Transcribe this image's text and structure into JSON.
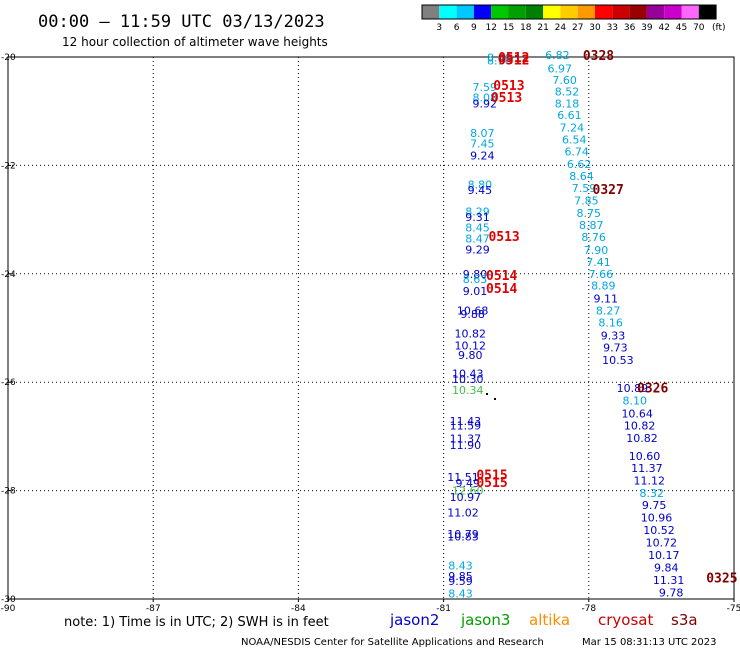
{
  "header": {
    "title": "00:00 – 11:59 UTC 03/13/2023",
    "subtitle": "12 hour collection of altimeter wave heights"
  },
  "colorbar": {
    "colors": [
      "#808080",
      "#00ffff",
      "#00c8ff",
      "#0000ff",
      "#00c800",
      "#00a000",
      "#008000",
      "#ffff00",
      "#ffcc00",
      "#ff9900",
      "#ff0000",
      "#cc0000",
      "#990000",
      "#990099",
      "#cc00cc",
      "#ff66ff",
      "#000000"
    ],
    "labels": [
      "3",
      "6",
      "9",
      "12",
      "15",
      "18",
      "21",
      "24",
      "27",
      "30",
      "33",
      "36",
      "39",
      "42",
      "45",
      "70"
    ],
    "unit": "(ft)"
  },
  "footer": {
    "note": "note:  1) Time is in UTC;  2) SWH is in feet",
    "satellites": [
      {
        "name": "jason2",
        "color": "#0000cc"
      },
      {
        "name": "jason3",
        "color": "#00a000"
      },
      {
        "name": "altika",
        "color": "#ff8c00"
      },
      {
        "name": "cryosat",
        "color": "#cc0000"
      },
      {
        "name": "s3a",
        "color": "#800000"
      }
    ],
    "credit": "NOAA/NESDIS Center for Satellite Applications and Research",
    "generated": "Mar 15 08:31:13 UTC 2023"
  },
  "chart_data": {
    "type": "scatter",
    "xlim": [
      -90,
      -75
    ],
    "ylim": [
      -30,
      -20
    ],
    "xticks": [
      "-90",
      "-87",
      "-84",
      "-81",
      "-78",
      "-75"
    ],
    "yticks": [
      "-20",
      "-22",
      "-24",
      "-26",
      "-28",
      "-30"
    ],
    "grid": true,
    "point_colors": {
      "cyan": "#00a8e0",
      "blue": "#0000cc",
      "green": "#44bb44"
    },
    "pass_colors": {
      "red": "#e00000",
      "dark": "#800000"
    },
    "points": [
      {
        "x": -79.85,
        "y": -20.01,
        "v": "8.66",
        "c": "cyan"
      },
      {
        "x": -79.85,
        "y": -20.06,
        "v": "8.96",
        "c": "cyan"
      },
      {
        "x": -78.65,
        "y": -19.96,
        "v": "6.82",
        "c": "cyan"
      },
      {
        "x": -78.6,
        "y": -20.21,
        "v": "6.97",
        "c": "cyan"
      },
      {
        "x": -78.5,
        "y": -20.42,
        "v": "7.60",
        "c": "cyan"
      },
      {
        "x": -78.45,
        "y": -20.64,
        "v": "8.52",
        "c": "cyan"
      },
      {
        "x": -78.45,
        "y": -20.86,
        "v": "8.18",
        "c": "cyan"
      },
      {
        "x": -78.4,
        "y": -21.07,
        "v": "6.61",
        "c": "cyan"
      },
      {
        "x": -78.35,
        "y": -21.3,
        "v": "7.24",
        "c": "cyan"
      },
      {
        "x": -78.3,
        "y": -21.52,
        "v": "6.54",
        "c": "cyan"
      },
      {
        "x": -78.25,
        "y": -21.74,
        "v": "6.74",
        "c": "cyan"
      },
      {
        "x": -78.2,
        "y": -21.97,
        "v": "6.62",
        "c": "cyan"
      },
      {
        "x": -78.15,
        "y": -22.2,
        "v": "8.64",
        "c": "cyan"
      },
      {
        "x": -78.1,
        "y": -22.42,
        "v": "7.59",
        "c": "cyan"
      },
      {
        "x": -78.05,
        "y": -22.65,
        "v": "7.85",
        "c": "cyan"
      },
      {
        "x": -78.0,
        "y": -22.88,
        "v": "8.75",
        "c": "cyan"
      },
      {
        "x": -77.95,
        "y": -23.1,
        "v": "8.87",
        "c": "cyan"
      },
      {
        "x": -77.9,
        "y": -23.32,
        "v": "8.76",
        "c": "cyan"
      },
      {
        "x": -77.85,
        "y": -23.56,
        "v": "7.90",
        "c": "cyan"
      },
      {
        "x": -77.8,
        "y": -23.78,
        "v": "7.41",
        "c": "cyan"
      },
      {
        "x": -77.75,
        "y": -24.0,
        "v": "7.66",
        "c": "cyan"
      },
      {
        "x": -77.7,
        "y": -24.22,
        "v": "8.89",
        "c": "cyan"
      },
      {
        "x": -77.65,
        "y": -24.46,
        "v": "9.11",
        "c": "blue"
      },
      {
        "x": -77.6,
        "y": -24.68,
        "v": "8.27",
        "c": "cyan"
      },
      {
        "x": -77.55,
        "y": -24.9,
        "v": "8.16",
        "c": "cyan"
      },
      {
        "x": -77.5,
        "y": -25.14,
        "v": "9.33",
        "c": "blue"
      },
      {
        "x": -77.45,
        "y": -25.36,
        "v": "9.73",
        "c": "blue"
      },
      {
        "x": -77.4,
        "y": -25.59,
        "v": "10.53",
        "c": "blue"
      },
      {
        "x": -77.1,
        "y": -26.11,
        "v": "10.89",
        "c": "blue"
      },
      {
        "x": -77.05,
        "y": -26.34,
        "v": "8.10",
        "c": "cyan"
      },
      {
        "x": -77.0,
        "y": -26.58,
        "v": "10.64",
        "c": "blue"
      },
      {
        "x": -76.95,
        "y": -26.8,
        "v": "10.82",
        "c": "blue"
      },
      {
        "x": -76.9,
        "y": -27.03,
        "v": "10.82",
        "c": "blue"
      },
      {
        "x": -76.85,
        "y": -27.36,
        "v": "10.60",
        "c": "blue"
      },
      {
        "x": -76.8,
        "y": -27.58,
        "v": "11.37",
        "c": "blue"
      },
      {
        "x": -76.75,
        "y": -27.81,
        "v": "11.12",
        "c": "blue"
      },
      {
        "x": -76.7,
        "y": -28.04,
        "v": "8.32",
        "c": "cyan"
      },
      {
        "x": -76.65,
        "y": -28.27,
        "v": "9.75",
        "c": "blue"
      },
      {
        "x": -76.6,
        "y": -28.5,
        "v": "10.96",
        "c": "blue"
      },
      {
        "x": -76.55,
        "y": -28.73,
        "v": "10.52",
        "c": "blue"
      },
      {
        "x": -76.5,
        "y": -28.96,
        "v": "10.72",
        "c": "blue"
      },
      {
        "x": -76.45,
        "y": -29.19,
        "v": "10.17",
        "c": "blue"
      },
      {
        "x": -76.4,
        "y": -29.42,
        "v": "9.84",
        "c": "blue"
      },
      {
        "x": -76.35,
        "y": -29.65,
        "v": "11.31",
        "c": "blue"
      },
      {
        "x": -76.3,
        "y": -29.88,
        "v": "9.78",
        "c": "blue"
      },
      {
        "x": -80.15,
        "y": -20.55,
        "v": "7.59",
        "c": "cyan"
      },
      {
        "x": -80.15,
        "y": -20.75,
        "v": "8.08",
        "c": "cyan"
      },
      {
        "x": -80.15,
        "y": -20.86,
        "v": "9.92",
        "c": "blue"
      },
      {
        "x": -80.2,
        "y": -21.4,
        "v": "8.07",
        "c": "cyan"
      },
      {
        "x": -80.2,
        "y": -21.6,
        "v": "7.45",
        "c": "cyan"
      },
      {
        "x": -80.2,
        "y": -21.82,
        "v": "9.24",
        "c": "blue"
      },
      {
        "x": -80.25,
        "y": -22.35,
        "v": "8.80",
        "c": "cyan"
      },
      {
        "x": -80.25,
        "y": -22.45,
        "v": "9.45",
        "c": "blue"
      },
      {
        "x": -80.3,
        "y": -22.85,
        "v": "8.29",
        "c": "cyan"
      },
      {
        "x": -80.3,
        "y": -22.95,
        "v": "9.31",
        "c": "blue"
      },
      {
        "x": -80.3,
        "y": -23.15,
        "v": "8.45",
        "c": "cyan"
      },
      {
        "x": -80.3,
        "y": -23.35,
        "v": "8.47",
        "c": "cyan"
      },
      {
        "x": -80.3,
        "y": -23.55,
        "v": "9.29",
        "c": "blue"
      },
      {
        "x": -80.35,
        "y": -24.0,
        "v": "9.80",
        "c": "blue"
      },
      {
        "x": -80.35,
        "y": -24.1,
        "v": "8.63",
        "c": "cyan"
      },
      {
        "x": -80.35,
        "y": -24.32,
        "v": "9.01",
        "c": "blue"
      },
      {
        "x": -80.4,
        "y": -24.68,
        "v": "10.68",
        "c": "blue"
      },
      {
        "x": -80.4,
        "y": -24.74,
        "v": "9.88",
        "c": "blue"
      },
      {
        "x": -80.45,
        "y": -25.1,
        "v": "10.82",
        "c": "blue"
      },
      {
        "x": -80.45,
        "y": -25.32,
        "v": "10.12",
        "c": "blue"
      },
      {
        "x": -80.45,
        "y": -25.5,
        "v": "9.80",
        "c": "blue"
      },
      {
        "x": -80.5,
        "y": -25.84,
        "v": "10.43",
        "c": "blue"
      },
      {
        "x": -80.5,
        "y": -25.94,
        "v": "10.30",
        "c": "blue"
      },
      {
        "x": -80.5,
        "y": -26.14,
        "v": "10.34",
        "c": "green"
      },
      {
        "x": -80.55,
        "y": -26.72,
        "v": "11.43",
        "c": "blue"
      },
      {
        "x": -80.55,
        "y": -26.8,
        "v": "11.59",
        "c": "blue"
      },
      {
        "x": -80.55,
        "y": -27.04,
        "v": "11.37",
        "c": "blue"
      },
      {
        "x": -80.55,
        "y": -27.16,
        "v": "11.90",
        "c": "blue"
      },
      {
        "x": -80.6,
        "y": -27.75,
        "v": "11.51",
        "c": "blue"
      },
      {
        "x": -80.5,
        "y": -27.86,
        "v": "9.49",
        "c": "blue"
      },
      {
        "x": -80.5,
        "y": -28.0,
        "v": "12.60",
        "c": "green"
      },
      {
        "x": -80.55,
        "y": -28.12,
        "v": "10.97",
        "c": "blue"
      },
      {
        "x": -80.6,
        "y": -28.4,
        "v": "11.02",
        "c": "blue"
      },
      {
        "x": -80.6,
        "y": -28.8,
        "v": "10.79",
        "c": "blue"
      },
      {
        "x": -80.6,
        "y": -28.85,
        "v": "10.83",
        "c": "blue"
      },
      {
        "x": -80.65,
        "y": -29.38,
        "v": "8.43",
        "c": "cyan"
      },
      {
        "x": -80.65,
        "y": -29.58,
        "v": "9.85",
        "c": "blue"
      },
      {
        "x": -80.65,
        "y": -29.67,
        "v": "9.59",
        "c": "blue"
      },
      {
        "x": -80.65,
        "y": -29.9,
        "v": "8.43",
        "c": "cyan"
      }
    ],
    "pass_labels": [
      {
        "x": -79.55,
        "y": -20.0,
        "t": "0512",
        "c": "red"
      },
      {
        "x": -79.55,
        "y": -20.05,
        "t": "0512",
        "c": "red"
      },
      {
        "x": -77.8,
        "y": -19.96,
        "t": "0328",
        "c": "dark"
      },
      {
        "x": -79.65,
        "y": -20.52,
        "t": "0513",
        "c": "red"
      },
      {
        "x": -79.7,
        "y": -20.74,
        "t": "0513",
        "c": "red"
      },
      {
        "x": -77.6,
        "y": -22.44,
        "t": "0327",
        "c": "dark"
      },
      {
        "x": -79.75,
        "y": -23.3,
        "t": "0513",
        "c": "red"
      },
      {
        "x": -79.8,
        "y": -24.02,
        "t": "0514",
        "c": "red"
      },
      {
        "x": -79.8,
        "y": -24.26,
        "t": "0514",
        "c": "red"
      },
      {
        "x": -76.68,
        "y": -26.1,
        "t": "0326",
        "c": "dark"
      },
      {
        "x": -80.0,
        "y": -27.7,
        "t": "0515",
        "c": "red"
      },
      {
        "x": -80.0,
        "y": -27.84,
        "t": "0515",
        "c": "red"
      },
      {
        "x": -75.25,
        "y": -29.6,
        "t": "0325",
        "c": "dark"
      }
    ]
  }
}
